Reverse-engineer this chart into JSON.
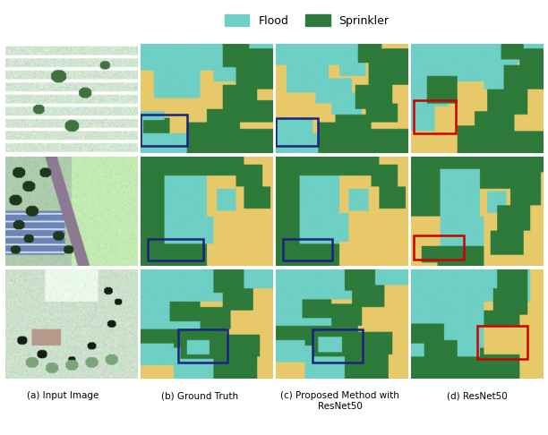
{
  "legend_labels": [
    "Flood",
    "Sprinkler"
  ],
  "flood_color": "#6ecfc4",
  "sprinkler_color": "#2d7a3a",
  "bg_color": "#e8c96a",
  "col_labels": [
    "(a) Input Image",
    "(b) Ground Truth",
    "(c) Proposed Method with\nResNet50",
    "(d) ResNet50"
  ],
  "label_fontsize": 7.5,
  "legend_fontsize": 9,
  "box_colors": {
    "gt": "#1a237e",
    "prop": "#1a237e",
    "resnet": "#cc0000"
  }
}
